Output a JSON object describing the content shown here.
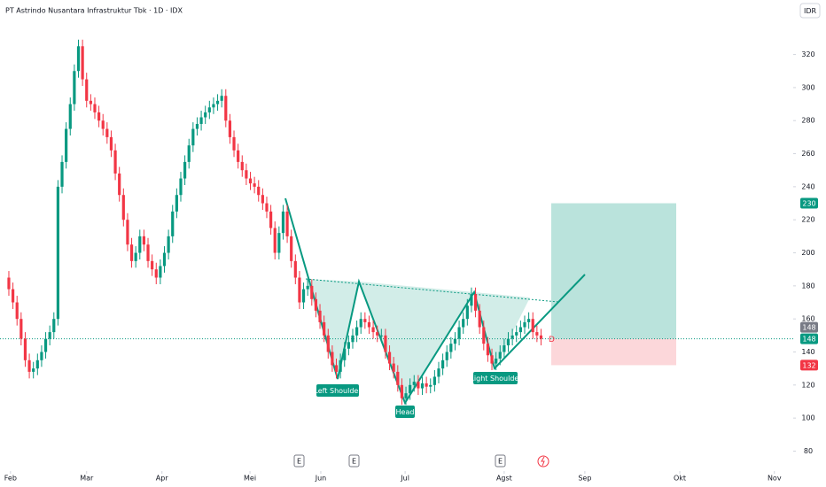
{
  "chart_data": {
    "type": "candlestick",
    "title": "PT Astrindo Nusantara Infrastruktur Tbk · 1D · IDX",
    "currency": "IDR",
    "up_color": "#089981",
    "down_color": "#f23645",
    "open": [
      185,
      178,
      170,
      160,
      148,
      135,
      128,
      130,
      135,
      140,
      148,
      152,
      160,
      240,
      255,
      275,
      290,
      310,
      325,
      305,
      292,
      290,
      285,
      280,
      275,
      270,
      262,
      248,
      235,
      220,
      205,
      195,
      200,
      210,
      205,
      195,
      190,
      185,
      192,
      200,
      210,
      225,
      235,
      245,
      255,
      265,
      275,
      278,
      282,
      285,
      288,
      290,
      292,
      295,
      280,
      270,
      262,
      255,
      250,
      245,
      242,
      240,
      235,
      230,
      225,
      215,
      200,
      212,
      225,
      210,
      195,
      185,
      170,
      178,
      180,
      172,
      165,
      158,
      150,
      140,
      132,
      128,
      135,
      142,
      146,
      150,
      155,
      160,
      158,
      155,
      152,
      150,
      150,
      140,
      133,
      128,
      120,
      112,
      115,
      120,
      122,
      118,
      121,
      119,
      120,
      125,
      130,
      135,
      140,
      145,
      148,
      155,
      160,
      168,
      175,
      165,
      155,
      145,
      138,
      133,
      136,
      140,
      144,
      148,
      150,
      152,
      155,
      158,
      160,
      152,
      150
    ],
    "high": [
      189,
      182,
      174,
      164,
      152,
      139,
      134,
      139,
      144,
      152,
      156,
      164,
      244,
      259,
      279,
      294,
      314,
      329,
      329,
      309,
      296,
      294,
      289,
      284,
      279,
      274,
      266,
      252,
      239,
      224,
      209,
      204,
      214,
      214,
      209,
      199,
      194,
      196,
      204,
      214,
      229,
      239,
      249,
      259,
      269,
      279,
      282,
      286,
      289,
      292,
      294,
      296,
      299,
      299,
      284,
      274,
      266,
      259,
      254,
      249,
      246,
      244,
      239,
      234,
      229,
      219,
      216,
      229,
      229,
      214,
      199,
      189,
      182,
      184,
      184,
      176,
      169,
      162,
      154,
      144,
      136,
      139,
      146,
      150,
      154,
      159,
      164,
      164,
      162,
      159,
      156,
      154,
      154,
      144,
      137,
      132,
      124,
      119,
      124,
      126,
      126,
      125,
      125,
      124,
      129,
      134,
      139,
      144,
      149,
      152,
      159,
      164,
      172,
      179,
      179,
      169,
      159,
      149,
      142,
      140,
      144,
      148,
      152,
      154,
      156,
      159,
      162,
      164,
      164,
      156,
      154
    ],
    "low": [
      174,
      166,
      156,
      144,
      131,
      124,
      124,
      126,
      131,
      136,
      144,
      148,
      156,
      236,
      251,
      271,
      286,
      306,
      301,
      288,
      286,
      281,
      276,
      271,
      266,
      258,
      244,
      231,
      216,
      201,
      191,
      191,
      196,
      201,
      191,
      186,
      181,
      181,
      188,
      196,
      206,
      221,
      231,
      241,
      251,
      261,
      271,
      274,
      278,
      281,
      284,
      286,
      288,
      276,
      266,
      258,
      251,
      246,
      241,
      238,
      236,
      231,
      226,
      221,
      211,
      196,
      196,
      208,
      206,
      191,
      181,
      166,
      166,
      174,
      168,
      161,
      154,
      146,
      136,
      128,
      124,
      124,
      131,
      138,
      142,
      146,
      151,
      154,
      151,
      148,
      146,
      146,
      136,
      129,
      124,
      116,
      108,
      108,
      111,
      116,
      114,
      114,
      115,
      115,
      116,
      121,
      126,
      131,
      136,
      141,
      144,
      151,
      156,
      164,
      161,
      151,
      141,
      134,
      129,
      129,
      132,
      136,
      140,
      144,
      146,
      148,
      151,
      154,
      148,
      146,
      144
    ],
    "close": [
      178,
      170,
      160,
      148,
      135,
      128,
      130,
      135,
      140,
      148,
      152,
      160,
      240,
      255,
      275,
      290,
      310,
      325,
      305,
      292,
      290,
      285,
      280,
      275,
      270,
      262,
      248,
      235,
      220,
      205,
      195,
      200,
      210,
      205,
      195,
      190,
      185,
      192,
      200,
      210,
      225,
      235,
      245,
      255,
      265,
      275,
      278,
      282,
      285,
      288,
      290,
      292,
      295,
      280,
      270,
      262,
      255,
      250,
      245,
      242,
      240,
      235,
      230,
      225,
      215,
      200,
      212,
      225,
      210,
      195,
      185,
      170,
      178,
      180,
      172,
      165,
      158,
      150,
      140,
      132,
      128,
      135,
      142,
      146,
      150,
      155,
      160,
      158,
      155,
      152,
      150,
      150,
      140,
      133,
      128,
      120,
      112,
      115,
      120,
      122,
      118,
      121,
      119,
      120,
      125,
      130,
      135,
      140,
      145,
      148,
      155,
      160,
      168,
      175,
      165,
      155,
      145,
      138,
      133,
      136,
      140,
      144,
      148,
      150,
      152,
      155,
      158,
      160,
      152,
      150,
      148
    ],
    "ylim": [
      69,
      353
    ],
    "yticks": [
      80,
      100,
      120,
      140,
      160,
      180,
      200,
      220,
      240,
      260,
      280,
      300,
      320
    ],
    "xlim": [
      -2.16,
      191.6
    ],
    "xticks": [
      {
        "value": 0.4,
        "label": "Feb"
      },
      {
        "value": 19,
        "label": "Mar"
      },
      {
        "value": 37.4,
        "label": "Apr"
      },
      {
        "value": 58.9,
        "label": "Mei"
      },
      {
        "value": 76.2,
        "label": "Jun"
      },
      {
        "value": 96.8,
        "label": "Jul"
      },
      {
        "value": 121,
        "label": "Agst"
      },
      {
        "value": 140.7,
        "label": "Sep"
      },
      {
        "value": 163.9,
        "label": "Okt"
      },
      {
        "value": 187,
        "label": "Nov"
      }
    ],
    "position": {
      "target": 230,
      "entry": 148,
      "stop": 132
    },
    "last_price": 148,
    "pattern_labels": [
      "Left Shoulder",
      "Head",
      "Right Shoulder"
    ],
    "event_markers": [
      "E",
      "E",
      "E"
    ],
    "last_bar_marker": "D"
  }
}
